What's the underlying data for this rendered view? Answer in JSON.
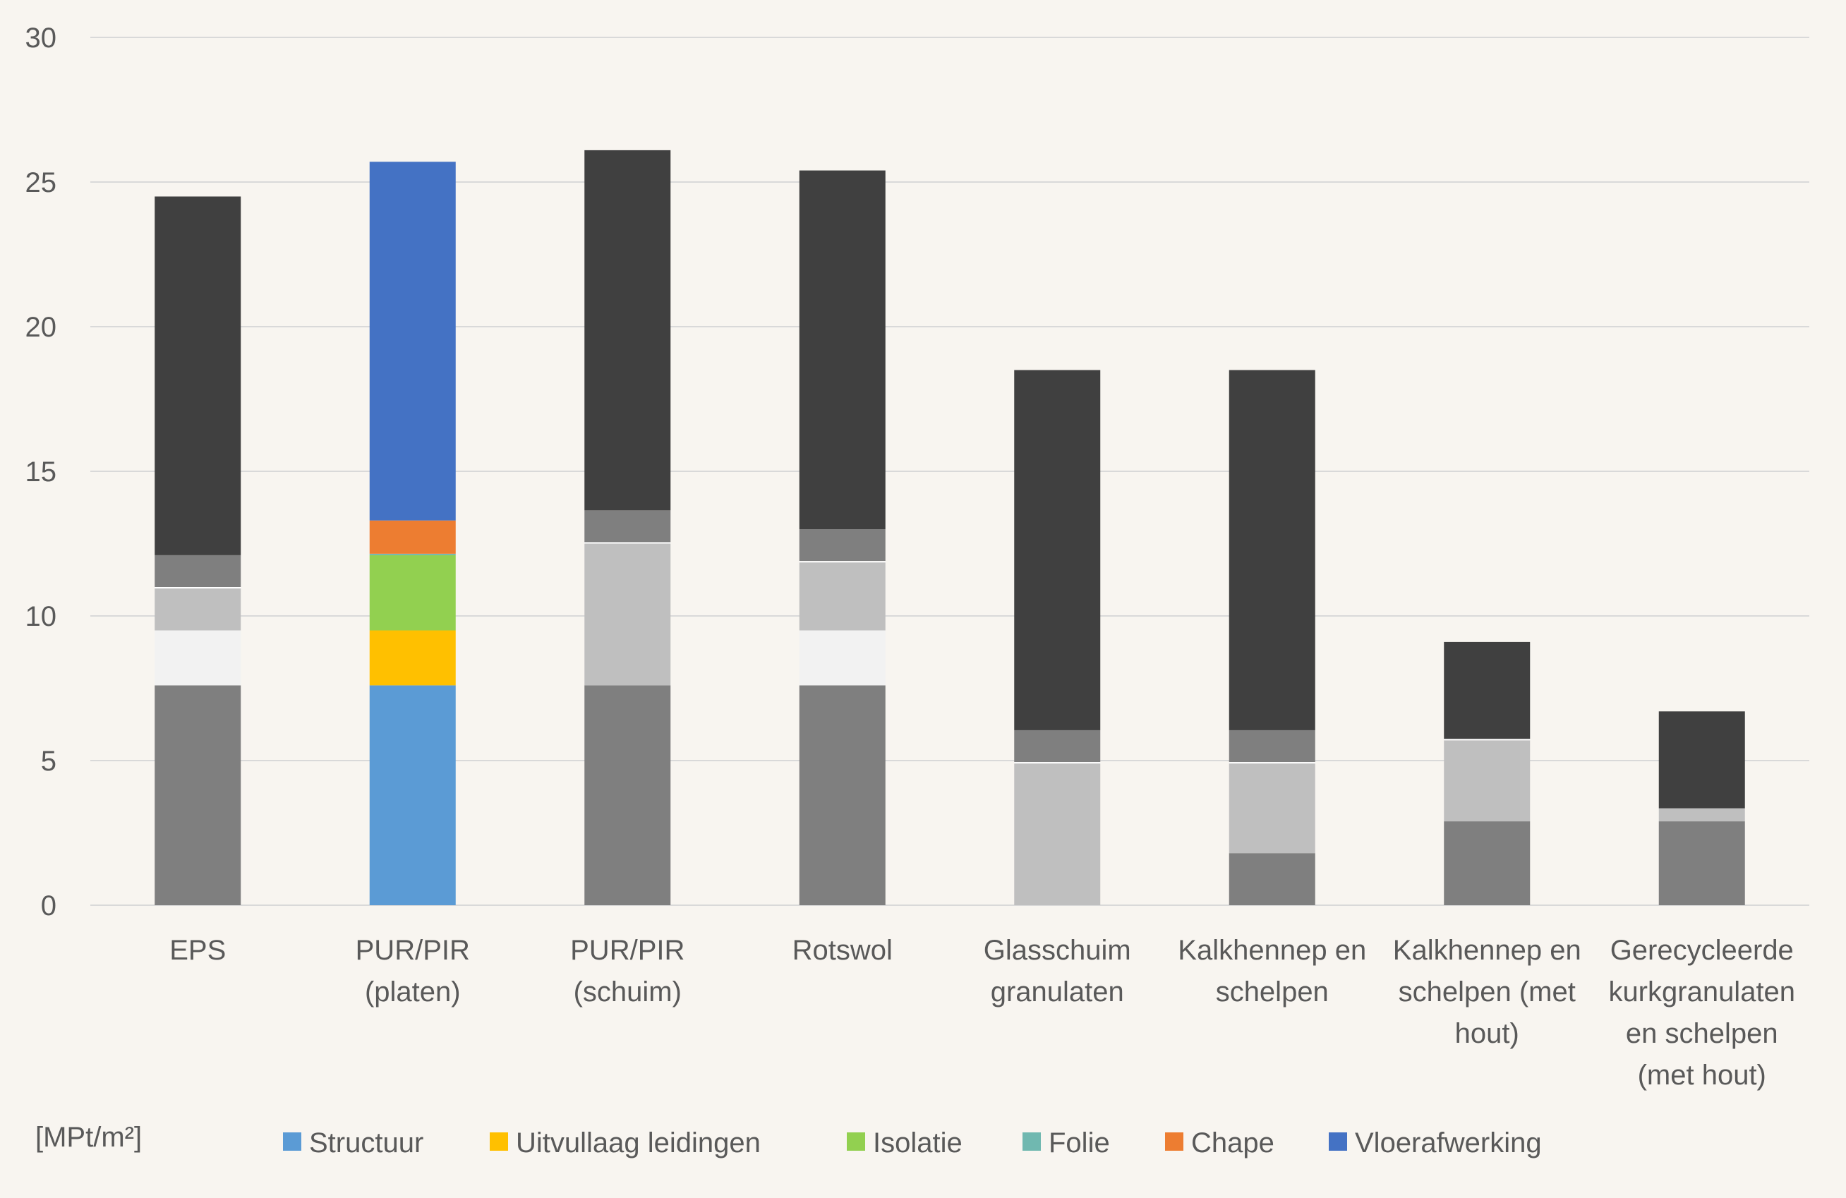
{
  "chart_data": {
    "type": "bar",
    "stacked": true,
    "unit_label": "[MPt/m²]",
    "ylim": [
      0,
      30
    ],
    "yticks": [
      0,
      5,
      10,
      15,
      20,
      25,
      30
    ],
    "grid": true,
    "legend_placement": "bottom",
    "categories": [
      [
        "EPS"
      ],
      [
        "PUR/PIR",
        "(platen)"
      ],
      [
        "PUR/PIR",
        "(schuim)"
      ],
      [
        "Rotswol"
      ],
      [
        "Glasschuim",
        "granulaten"
      ],
      [
        "Kalkhennep en",
        "schelpen"
      ],
      [
        "Kalkhennep en",
        "schelpen (met",
        "hout)"
      ],
      [
        "Gerecycleerde",
        "kurkgranulaten",
        "en schelpen",
        "(met hout)"
      ]
    ],
    "series": [
      {
        "name": "Structuur",
        "legend_color": "#5b9bd5",
        "values": [
          7.6,
          7.6,
          7.6,
          7.6,
          0,
          1.8,
          2.9,
          2.9
        ],
        "colors": [
          "#7f7f7f",
          "#5b9bd5",
          "#7f7f7f",
          "#7f7f7f",
          "#7f7f7f",
          "#7f7f7f",
          "#7f7f7f",
          "#7f7f7f"
        ]
      },
      {
        "name": "Uitvullaag leidingen",
        "legend_color": "#ffc000",
        "values": [
          1.9,
          1.9,
          0,
          1.9,
          0,
          0,
          0,
          0
        ],
        "colors": [
          "#f2f2f2",
          "#ffc000",
          "#f2f2f2",
          "#f2f2f2",
          "#f2f2f2",
          "#f2f2f2",
          "#f2f2f2",
          "#f2f2f2"
        ]
      },
      {
        "name": "Isolatie",
        "legend_color": "#92d050",
        "values": [
          1.45,
          2.6,
          4.9,
          2.35,
          4.9,
          3.1,
          2.8,
          0.45
        ],
        "colors": [
          "#bfbfbf",
          "#92d050",
          "#bfbfbf",
          "#bfbfbf",
          "#bfbfbf",
          "#bfbfbf",
          "#bfbfbf",
          "#bfbfbf"
        ]
      },
      {
        "name": "Folie",
        "legend_color": "#70b8b0",
        "values": [
          0.05,
          0.05,
          0.05,
          0.05,
          0.05,
          0.05,
          0.05,
          0
        ],
        "colors": [
          "#ffffff",
          "#70b8b0",
          "#ffffff",
          "#ffffff",
          "#ffffff",
          "#ffffff",
          "#ffffff",
          "#ffffff"
        ]
      },
      {
        "name": "Chape",
        "legend_color": "#ed7d31",
        "values": [
          1.1,
          1.15,
          1.1,
          1.1,
          1.1,
          1.1,
          0,
          0
        ],
        "colors": [
          "#7f7f7f",
          "#ed7d31",
          "#7f7f7f",
          "#7f7f7f",
          "#7f7f7f",
          "#7f7f7f",
          "#7f7f7f",
          "#7f7f7f"
        ]
      },
      {
        "name": "Vloerafwerking",
        "legend_color": "#4472c4",
        "values": [
          12.4,
          12.4,
          12.45,
          12.4,
          12.45,
          12.45,
          3.35,
          3.35
        ],
        "colors": [
          "#404040",
          "#4472c4",
          "#404040",
          "#404040",
          "#404040",
          "#404040",
          "#404040",
          "#404040"
        ]
      }
    ]
  }
}
